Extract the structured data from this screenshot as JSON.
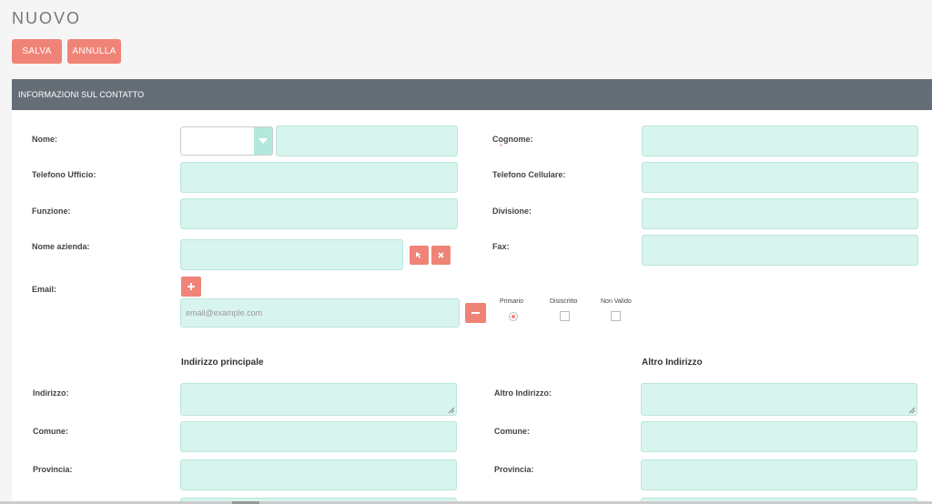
{
  "page": {
    "title": "NUOVO"
  },
  "toolbar": {
    "save_label": "SALVA",
    "cancel_label": "ANNULLA"
  },
  "panel": {
    "header": "INFORMAZIONI SUL CONTATTO"
  },
  "fields": {
    "nome": "Nome:",
    "cognome": "Cognome:",
    "telefono_ufficio": "Telefono Ufficio:",
    "telefono_cellulare": "Telefono Cellulare:",
    "funzione": "Funzione:",
    "divisione": "Divisione:",
    "nome_azienda": "Nome azienda:",
    "fax": "Fax:",
    "email": "Email:"
  },
  "email": {
    "placeholder": "email@example.com",
    "options": [
      "Primario",
      "Disiscritto",
      "Non Valido"
    ],
    "selected": "Primario"
  },
  "address": {
    "primary_title": "Indirizzo principale",
    "alt_title": "Altro Indirizzo",
    "indirizzo": "Indirizzo:",
    "altro_indirizzo": "Altro Indirizzo:",
    "comune": "Comune:",
    "provincia": "Provincia:"
  },
  "colors": {
    "accent": "#f08377",
    "input_bg": "#d8f4ee",
    "header_bg": "#656e77"
  },
  "icons": {
    "select_arrow": "chevron-down-icon",
    "select_button": "cursor-arrow-icon",
    "clear_button": "close-icon",
    "add_email": "plus-icon",
    "remove_email": "minus-icon"
  }
}
